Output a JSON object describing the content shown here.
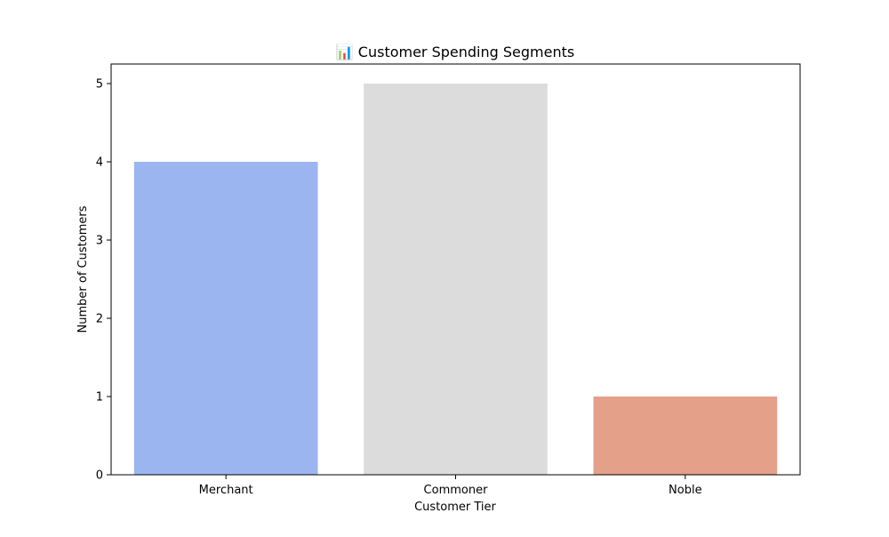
{
  "chart_data": {
    "type": "bar",
    "title": "📊 Customer Spending Segments",
    "xlabel": "Customer Tier",
    "ylabel": "Number of Customers",
    "categories": [
      "Merchant",
      "Commoner",
      "Noble"
    ],
    "values": [
      4,
      5,
      1
    ],
    "colors": [
      "#9ab5f0",
      "#dcdcdc",
      "#e4a088"
    ],
    "ylim": [
      0,
      5.25
    ],
    "yticks": [
      0,
      1,
      2,
      3,
      4,
      5
    ],
    "grid": false,
    "legend": "none"
  }
}
